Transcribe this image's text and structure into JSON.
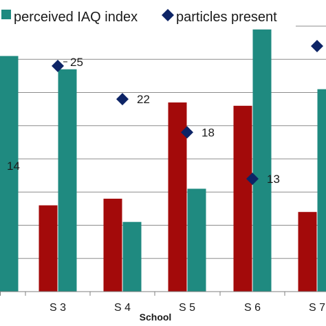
{
  "chart_data": {
    "type": "bar",
    "title": "",
    "xlabel": "School",
    "ylabel": "",
    "categories": [
      "",
      "S 3",
      "S 4",
      "S 5",
      "S 6",
      "S 7"
    ],
    "ylim": [
      0,
      8
    ],
    "grid": true,
    "legend": "top",
    "series": [
      {
        "name": "",
        "kind": "bar",
        "color": "#a30a0a",
        "values": [
          null,
          2.6,
          2.8,
          5.7,
          5.6,
          2.4
        ]
      },
      {
        "name": "perceived IAQ index",
        "kind": "bar",
        "color": "#1f8a80",
        "values": [
          7.1,
          6.7,
          2.1,
          3.1,
          7.9,
          6.1
        ]
      },
      {
        "name": "particles present",
        "kind": "scatter",
        "color": "#0d2466",
        "values": [
          null,
          6.8,
          5.8,
          4.8,
          3.4,
          7.4
        ],
        "labels": [
          "14",
          "25",
          "22",
          "18",
          "13",
          ""
        ]
      }
    ]
  }
}
